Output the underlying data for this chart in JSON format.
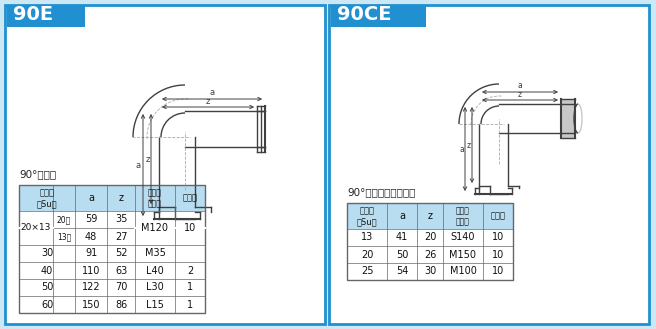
{
  "bg_color": "#cce8f5",
  "panel_bg": "#ffffff",
  "white": "#ffffff",
  "border_color": "#2090d0",
  "header_bg": "#2090d0",
  "title_color": "#ffffff",
  "table_header_bg": "#b8ddf0",
  "table_border": "#888888",
  "title_left": "90E",
  "title_right": "90CE",
  "subtitle_left": "90°エルボ",
  "subtitle_right": "90°コンパクトエルボ",
  "col_headers_left": [
    "呼び径\n（Su）",
    "a",
    "z",
    "ケース\n入　数",
    "袋入数"
  ],
  "col_headers_right": [
    "呼び径\n（Su）",
    "a",
    "z",
    "ケース\n入　数",
    "袋入数"
  ],
  "left_table": {
    "rows": [
      [
        "20×13",
        "20側",
        "59",
        "35",
        "M120",
        "10"
      ],
      [
        "20×13",
        "13側",
        "48",
        "27",
        "M120",
        "10"
      ],
      [
        "30",
        "",
        "91",
        "52",
        "M35",
        ""
      ],
      [
        "40",
        "",
        "110",
        "63",
        "L40",
        "2"
      ],
      [
        "50",
        "",
        "122",
        "70",
        "L30",
        "1"
      ],
      [
        "60",
        "",
        "150",
        "86",
        "L15",
        "1"
      ]
    ]
  },
  "right_table": {
    "rows": [
      [
        "13",
        "41",
        "20",
        "S140",
        "10"
      ],
      [
        "20",
        "50",
        "26",
        "M150",
        "10"
      ],
      [
        "25",
        "54",
        "30",
        "M100",
        "10"
      ]
    ]
  }
}
